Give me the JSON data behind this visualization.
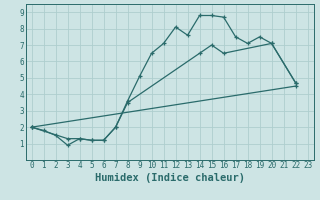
{
  "xlabel": "Humidex (Indice chaleur)",
  "background_color": "#cde4e4",
  "grid_color": "#aecece",
  "line_color": "#2a6b6b",
  "xlim": [
    -0.5,
    23.5
  ],
  "ylim": [
    0,
    9.5
  ],
  "xticks": [
    0,
    1,
    2,
    3,
    4,
    5,
    6,
    7,
    8,
    9,
    10,
    11,
    12,
    13,
    14,
    15,
    16,
    17,
    18,
    19,
    20,
    21,
    22,
    23
  ],
  "yticks": [
    1,
    2,
    3,
    4,
    5,
    6,
    7,
    8,
    9
  ],
  "line1_x": [
    0,
    1,
    2,
    3,
    4,
    5,
    6,
    7,
    8,
    9,
    10,
    11,
    12,
    13,
    14,
    15,
    16,
    17,
    18,
    19,
    20,
    22
  ],
  "line1_y": [
    2.0,
    1.8,
    1.5,
    0.9,
    1.3,
    1.2,
    1.2,
    2.0,
    3.6,
    5.1,
    6.5,
    7.1,
    8.1,
    7.6,
    8.8,
    8.8,
    8.7,
    7.5,
    7.1,
    7.5,
    7.1,
    4.7
  ],
  "line2_x": [
    0,
    3,
    4,
    5,
    6,
    7,
    8,
    14,
    15,
    16,
    20,
    22
  ],
  "line2_y": [
    2.0,
    1.3,
    1.3,
    1.2,
    1.2,
    2.0,
    3.5,
    6.5,
    7.0,
    6.5,
    7.1,
    4.7
  ],
  "line3_x": [
    0,
    22
  ],
  "line3_y": [
    2.0,
    4.5
  ],
  "font_family": "monospace",
  "xlabel_fontsize": 7.5,
  "tick_fontsize": 5.5
}
